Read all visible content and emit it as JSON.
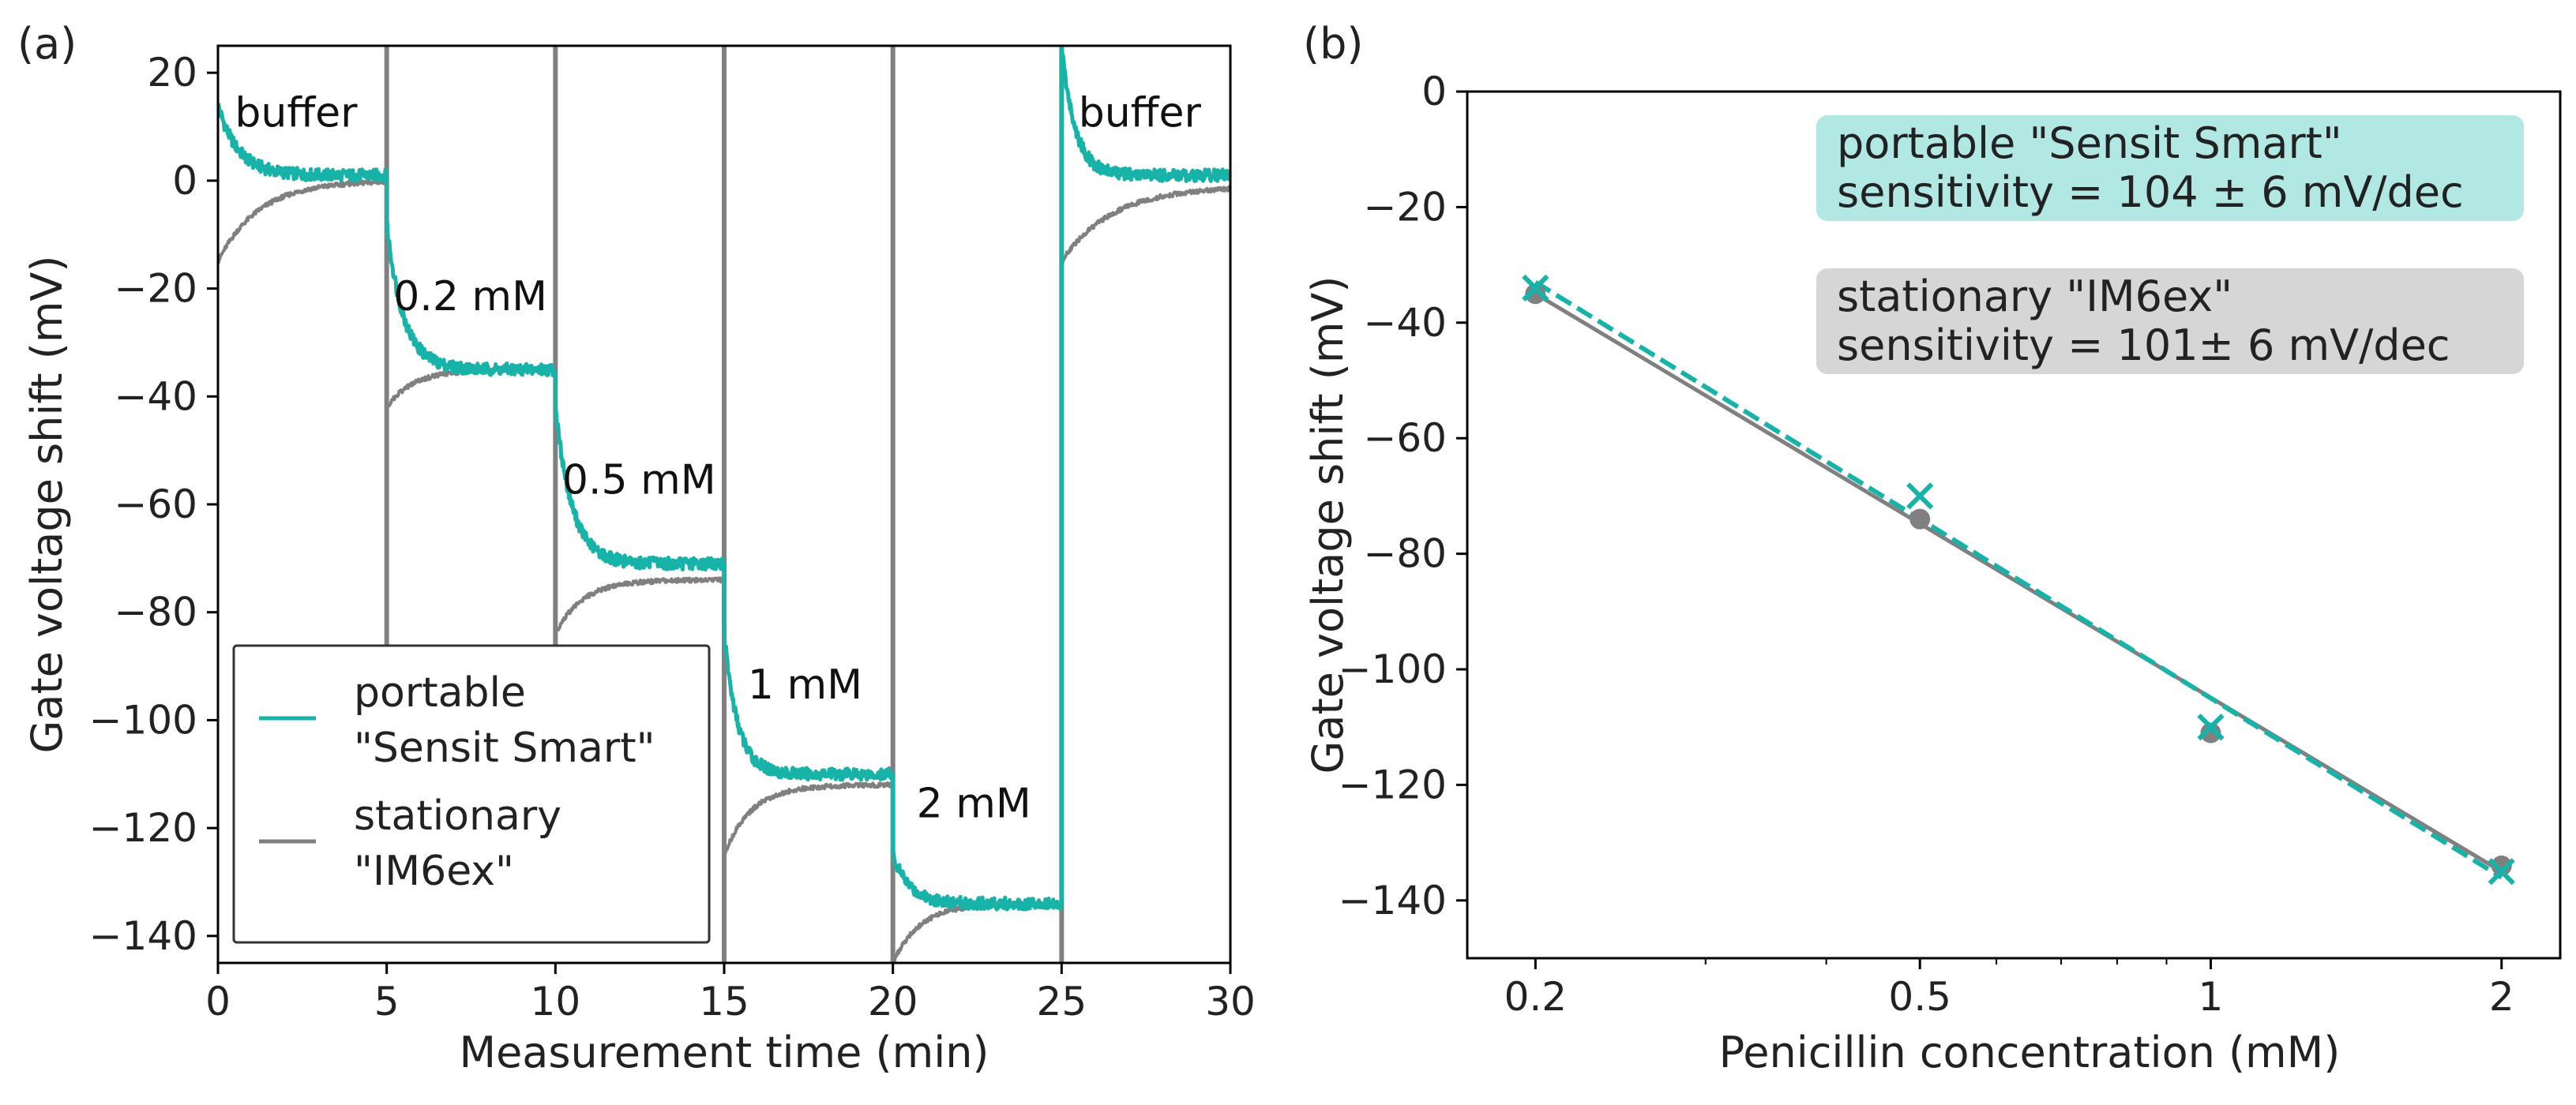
{
  "colors": {
    "teal": "#17B3A9",
    "gray": "#808080",
    "teal_box": "#B1E8E4",
    "gray_box": "#D6D6D6"
  },
  "chart_data": [
    {
      "id": "a",
      "type": "line",
      "panel_label": "(a)",
      "xlabel": "Measurement time (min)",
      "ylabel": "Gate voltage shift (mV)",
      "xlim": [
        0,
        30
      ],
      "ylim": [
        -145,
        25
      ],
      "xticks": [
        0,
        5,
        10,
        15,
        20,
        25,
        30
      ],
      "xtick_labels": [
        "0",
        "5",
        "10",
        "15",
        "20",
        "25",
        "30"
      ],
      "yticks": [
        20,
        0,
        -20,
        -40,
        -60,
        -80,
        -100,
        -120,
        -140
      ],
      "ytick_labels": [
        "20",
        "0",
        "−20",
        "−40",
        "−60",
        "−80",
        "−100",
        "−120",
        "−140"
      ],
      "series": [
        {
          "name": "portable \"Sensit Smart\"",
          "legend_lines": [
            "portable",
            "\"Sensit Smart\""
          ],
          "color": "teal",
          "segments": [
            {
              "t_start": 0,
              "t_end": 5,
              "start": 14,
              "plateau": 1,
              "tau": 0.6
            },
            {
              "t_start": 5,
              "t_end": 10,
              "start": -8,
              "plateau": -35,
              "tau": 0.5
            },
            {
              "t_start": 10,
              "t_end": 15,
              "start": -42,
              "plateau": -71,
              "tau": 0.5
            },
            {
              "t_start": 15,
              "t_end": 20,
              "start": -84,
              "plateau": -110,
              "tau": 0.4
            },
            {
              "t_start": 20,
              "t_end": 25,
              "start": -125,
              "plateau": -134,
              "tau": 0.5
            },
            {
              "t_start": 25,
              "t_end": 30,
              "start": 25,
              "plateau": 1,
              "tau": 0.4
            }
          ]
        },
        {
          "name": "stationary \"IM6ex\"",
          "legend_lines": [
            "stationary",
            "\"IM6ex\""
          ],
          "color": "gray",
          "segments": [
            {
              "t_start": 0,
              "t_end": 5,
              "start": -15,
              "plateau": 0,
              "tau": 1.2
            },
            {
              "t_start": 5,
              "t_end": 10,
              "start": -42,
              "plateau": -35,
              "tau": 0.8
            },
            {
              "t_start": 10,
              "t_end": 15,
              "start": -84,
              "plateau": -74,
              "tau": 0.8
            },
            {
              "t_start": 15,
              "t_end": 20,
              "start": -125,
              "plateau": -112,
              "tau": 0.8
            },
            {
              "t_start": 20,
              "t_end": 25,
              "start": -145,
              "plateau": -134,
              "tau": 0.8
            },
            {
              "t_start": 25,
              "t_end": 30,
              "start": -15,
              "plateau": -1,
              "tau": 1.5
            }
          ],
          "transients": [
            {
              "t": 5,
              "from": 25,
              "to": -90
            },
            {
              "t": 10,
              "from": 25,
              "to": -90
            },
            {
              "t": 15,
              "from": 25,
              "to": -145
            },
            {
              "t": 20,
              "from": 25,
              "to": -145
            },
            {
              "t": 25,
              "from": 25,
              "to": -145
            }
          ]
        }
      ],
      "annotations": [
        {
          "text": "buffer",
          "x": 0.5,
          "y": 10
        },
        {
          "text": "0.2 mM",
          "x": 5.2,
          "y": -24
        },
        {
          "text": "0.5 mM",
          "x": 10.2,
          "y": -58
        },
        {
          "text": "1 mM",
          "x": 15.7,
          "y": -96
        },
        {
          "text": "2 mM",
          "x": 20.7,
          "y": -118
        },
        {
          "text": "buffer",
          "x": 25.5,
          "y": 10
        }
      ],
      "legend_position": "lower-left"
    },
    {
      "id": "b",
      "type": "scatter",
      "panel_label": "(b)",
      "xlabel": "Penicillin concentration (mM)",
      "ylabel": "Gate voltage shift (mV)",
      "xscale": "log",
      "xlim": [
        0.17,
        2.3
      ],
      "ylim": [
        -150,
        0
      ],
      "xticks": [
        0.2,
        0.5,
        1,
        2
      ],
      "xtick_labels": [
        "0.2",
        "0.5",
        "1",
        "2"
      ],
      "xminor_ticks": [
        0.3,
        0.4,
        0.6,
        0.7,
        0.8,
        0.9
      ],
      "yticks": [
        0,
        -20,
        -40,
        -60,
        -80,
        -100,
        -120,
        -140
      ],
      "ytick_labels": [
        "0",
        "−20",
        "−40",
        "−60",
        "−80",
        "−100",
        "−120",
        "−140"
      ],
      "series": [
        {
          "name": "portable \"Sensit Smart\"",
          "marker": "x",
          "line": "dashed",
          "color": "teal",
          "x": [
            0.2,
            0.5,
            1,
            2
          ],
          "y": [
            -34,
            -70,
            -110,
            -135
          ],
          "fit": {
            "x": [
              0.2,
              2
            ],
            "y": [
              -33,
              -136
            ]
          }
        },
        {
          "name": "stationary \"IM6ex\"",
          "marker": "o",
          "line": "solid",
          "color": "gray",
          "x": [
            0.2,
            0.5,
            1,
            2
          ],
          "y": [
            -35,
            -74,
            -111,
            -134
          ],
          "fit": {
            "x": [
              0.2,
              2
            ],
            "y": [
              -35,
              -135
            ]
          }
        }
      ],
      "boxes": [
        {
          "color": "teal_box",
          "lines": [
            "portable \"Sensit Smart\"",
            "sensitivity = 104 ± 6 mV/dec"
          ]
        },
        {
          "color": "gray_box",
          "lines": [
            "stationary \"IM6ex\"",
            "sensitivity = 101± 6 mV/dec"
          ]
        }
      ]
    }
  ]
}
